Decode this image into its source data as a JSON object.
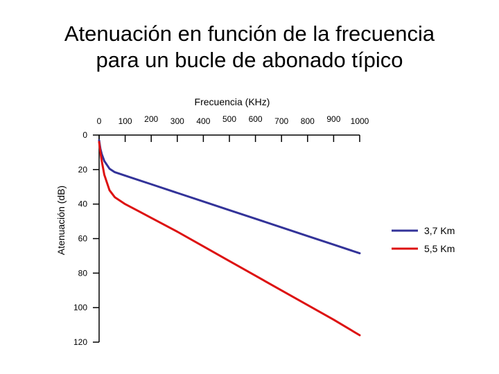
{
  "title_line1": "Atenuación en función de la frecuencia",
  "title_line2": "para un bucle de abonado típico",
  "chart_data": {
    "type": "line",
    "xlabel": "Frecuencia (KHz)",
    "ylabel": "Atenuación (dB)",
    "xlim": [
      0,
      1000
    ],
    "ylim": [
      0,
      120
    ],
    "x_axis_position": "top",
    "y_axis_inverted": true,
    "grid": false,
    "legend_position": "right",
    "xticks": [
      0,
      100,
      200,
      300,
      400,
      500,
      600,
      700,
      800,
      900,
      1000
    ],
    "yticks": [
      0,
      20,
      40,
      60,
      80,
      100,
      120
    ],
    "series": [
      {
        "name": "3,7 Km",
        "color": "#333399",
        "x": [
          0,
          5,
          10,
          20,
          40,
          60,
          80,
          100,
          150,
          200,
          300,
          400,
          500,
          600,
          700,
          800,
          900,
          1000
        ],
        "y": [
          3,
          8,
          11,
          15,
          19.5,
          21.5,
          22.5,
          23.5,
          26,
          28.5,
          33.5,
          38.5,
          43.5,
          48.5,
          53.5,
          58.5,
          63.5,
          68.5
        ]
      },
      {
        "name": "5,5 Km",
        "color": "#dd1111",
        "x": [
          0,
          5,
          10,
          20,
          40,
          60,
          80,
          100,
          150,
          200,
          300,
          400,
          500,
          600,
          700,
          800,
          900,
          1000
        ],
        "y": [
          4,
          10,
          15,
          23,
          32,
          36,
          38,
          40,
          44,
          48,
          56,
          64.5,
          73,
          81.5,
          90,
          98.5,
          107,
          116
        ]
      }
    ]
  }
}
